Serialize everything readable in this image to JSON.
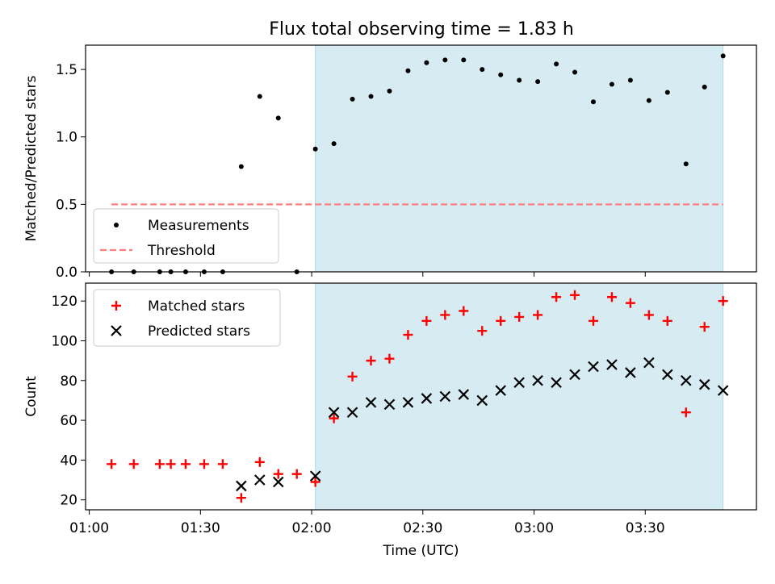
{
  "title": "Flux total observing time = 1.83 h",
  "colors": {
    "shade": "#add8e6",
    "threshold": "#ff7f7f",
    "matched": "#ff0000",
    "predicted": "#000000",
    "measurement": "#000000"
  },
  "chart_data": [
    {
      "type": "scatter",
      "ylabel": "Matched/Predicted stars",
      "ylim": [
        0,
        1.68
      ],
      "yticks": [
        0.0,
        0.5,
        1.0,
        1.5
      ],
      "ytick_labels": [
        "0.0",
        "0.5",
        "1.0",
        "1.5"
      ],
      "legend_position": "lower-left",
      "legend": [
        "Measurements",
        "Threshold"
      ],
      "shaded_interval": [
        "02:01",
        "03:51"
      ],
      "threshold": {
        "value": 0.5,
        "x_start": "01:06",
        "x_end": "03:51"
      },
      "series": [
        {
          "name": "Measurements",
          "x": [
            "01:06",
            "01:12",
            "01:19",
            "01:22",
            "01:26",
            "01:31",
            "01:36",
            "01:41",
            "01:46",
            "01:51",
            "01:56",
            "02:01",
            "02:06",
            "02:11",
            "02:16",
            "02:21",
            "02:26",
            "02:31",
            "02:36",
            "02:41",
            "02:46",
            "02:51",
            "02:56",
            "03:01",
            "03:06",
            "03:11",
            "03:16",
            "03:21",
            "03:26",
            "03:31",
            "03:36",
            "03:41",
            "03:46",
            "03:51"
          ],
          "values": [
            0.0,
            0.0,
            0.0,
            0.0,
            0.0,
            0.0,
            0.0,
            0.78,
            1.3,
            1.14,
            0.0,
            0.91,
            0.95,
            1.28,
            1.3,
            1.34,
            1.49,
            1.55,
            1.57,
            1.57,
            1.5,
            1.46,
            1.42,
            1.41,
            1.54,
            1.48,
            1.26,
            1.39,
            1.42,
            1.27,
            1.33,
            0.8,
            1.37,
            1.6
          ]
        }
      ]
    },
    {
      "type": "scatter",
      "xlabel": "Time (UTC)",
      "ylabel": "Count",
      "ylim": [
        15,
        129
      ],
      "yticks": [
        20,
        40,
        60,
        80,
        100,
        120
      ],
      "xlim": [
        "00:59",
        "04:00"
      ],
      "xticks": [
        "01:00",
        "01:30",
        "02:00",
        "02:30",
        "03:00",
        "03:30"
      ],
      "legend_position": "upper-left",
      "legend": [
        "Matched stars",
        "Predicted stars"
      ],
      "shaded_interval": [
        "02:01",
        "03:51"
      ],
      "series": [
        {
          "name": "Matched stars",
          "x": [
            "01:06",
            "01:12",
            "01:19",
            "01:22",
            "01:26",
            "01:31",
            "01:36",
            "01:41",
            "01:46",
            "01:51",
            "01:56",
            "02:01",
            "02:06",
            "02:11",
            "02:16",
            "02:21",
            "02:26",
            "02:31",
            "02:36",
            "02:41",
            "02:46",
            "02:51",
            "02:56",
            "03:01",
            "03:06",
            "03:11",
            "03:16",
            "03:21",
            "03:26",
            "03:31",
            "03:36",
            "03:41",
            "03:46",
            "03:51"
          ],
          "values": [
            38,
            38,
            38,
            38,
            38,
            38,
            38,
            21,
            39,
            33,
            33,
            29,
            61,
            82,
            90,
            91,
            103,
            110,
            113,
            115,
            105,
            110,
            112,
            113,
            122,
            123,
            110,
            122,
            119,
            113,
            110,
            64,
            107,
            120
          ]
        },
        {
          "name": "Predicted stars",
          "x": [
            "01:41",
            "01:46",
            "01:51",
            "02:01",
            "02:06",
            "02:11",
            "02:16",
            "02:21",
            "02:26",
            "02:31",
            "02:36",
            "02:41",
            "02:46",
            "02:51",
            "02:56",
            "03:01",
            "03:06",
            "03:11",
            "03:16",
            "03:21",
            "03:26",
            "03:31",
            "03:36",
            "03:41",
            "03:46",
            "03:51"
          ],
          "values": [
            27,
            30,
            29,
            32,
            64,
            64,
            69,
            68,
            69,
            71,
            72,
            73,
            70,
            75,
            79,
            80,
            79,
            83,
            87,
            88,
            84,
            89,
            83,
            80,
            78,
            75
          ]
        }
      ]
    }
  ]
}
